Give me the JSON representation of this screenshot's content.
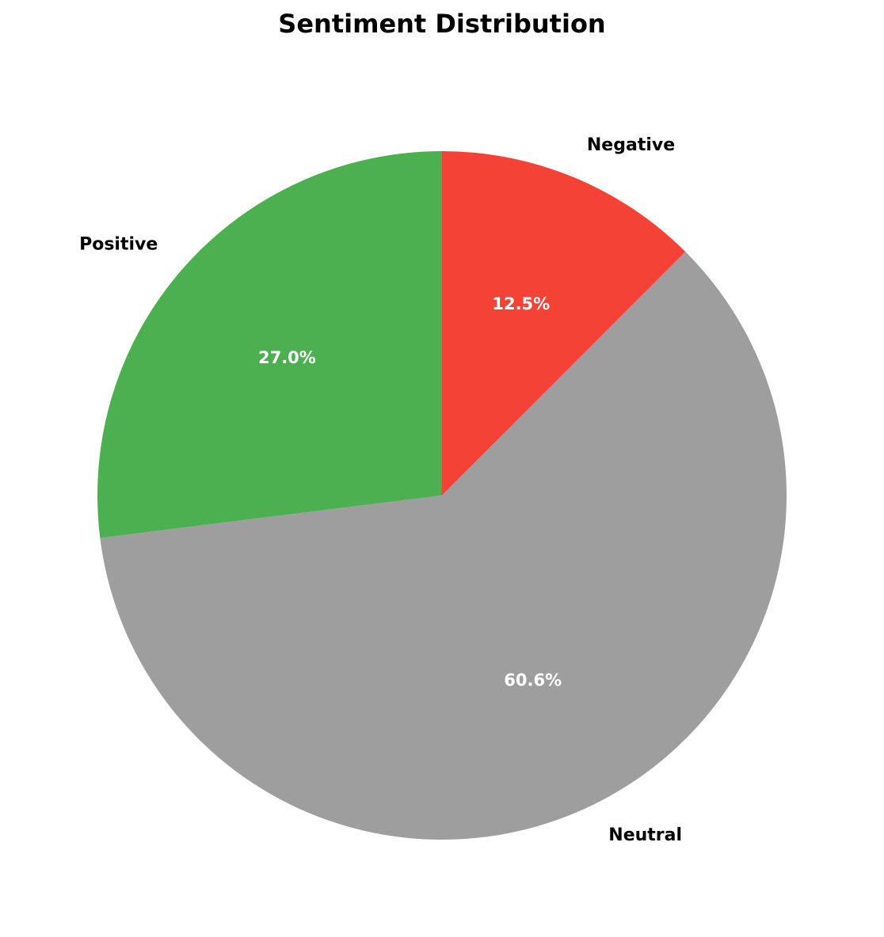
{
  "chart_data": {
    "type": "pie",
    "title": "Sentiment Distribution",
    "start_angle_deg": 90,
    "direction": "clockwise",
    "slices": [
      {
        "label": "Negative",
        "value": 12.5,
        "pct_label": "12.5%",
        "color": "#f44336"
      },
      {
        "label": "Neutral",
        "value": 60.6,
        "pct_label": "60.6%",
        "color": "#9e9e9e"
      },
      {
        "label": "Positive",
        "value": 27.0,
        "pct_label": "27.0%",
        "color": "#4caf50"
      }
    ]
  }
}
